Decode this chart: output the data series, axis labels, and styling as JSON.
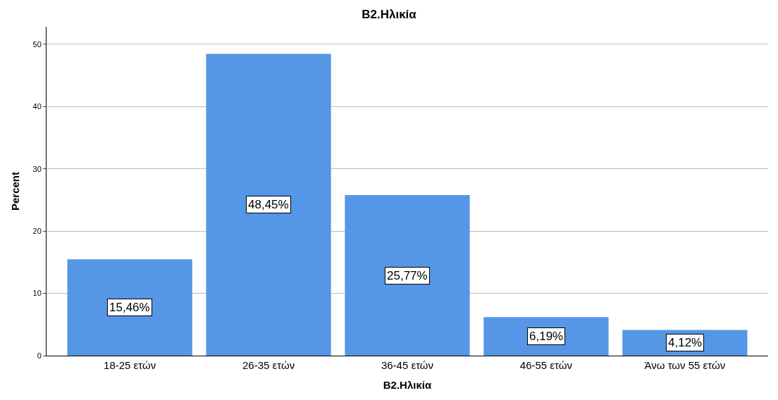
{
  "chart_data": {
    "type": "bar",
    "title": "B2.Ηλικία",
    "xlabel": "B2.Ηλικία",
    "ylabel": "Percent",
    "categories": [
      "18-25 ετών",
      "26-35 ετών",
      "36-45 ετών",
      "46-55 ετών",
      "Άνω των 55 ετών"
    ],
    "values": [
      15.46,
      48.45,
      25.77,
      6.19,
      4.12
    ],
    "value_labels": [
      "15,46%",
      "48,45%",
      "25,77%",
      "6,19%",
      "4,12%"
    ],
    "color": "#5596e6",
    "ylim": [
      0,
      52.8
    ],
    "yticks": [
      0,
      10,
      20,
      30,
      40,
      50
    ],
    "grid": "y",
    "legend": false
  }
}
